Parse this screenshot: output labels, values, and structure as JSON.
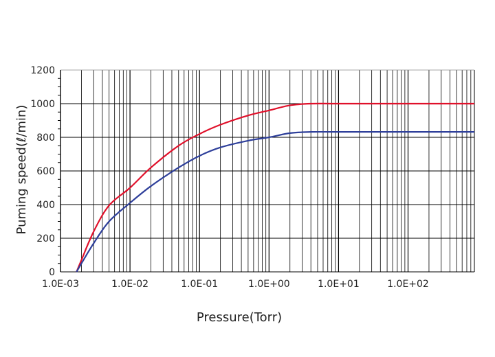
{
  "chart_data": {
    "type": "line",
    "title": "",
    "xlabel": "Pressure(Torr)",
    "ylabel": "Puming speed(ℓ/min)",
    "x_scale": "log",
    "xlim": [
      0.001,
      900
    ],
    "ylim": [
      0,
      1200
    ],
    "x_ticks": [
      {
        "value": 0.001,
        "label": "1.0E-03"
      },
      {
        "value": 0.01,
        "label": "1.0E-02"
      },
      {
        "value": 0.1,
        "label": "1.0E-01"
      },
      {
        "value": 1,
        "label": "1.0E+00"
      },
      {
        "value": 10,
        "label": "1.0E+01"
      },
      {
        "value": 100,
        "label": "1.0E+02"
      }
    ],
    "y_ticks": [
      0,
      200,
      400,
      600,
      800,
      1000,
      1200
    ],
    "grid": true,
    "series": [
      {
        "name": "",
        "color": "#e0102a",
        "points": [
          [
            0.0017,
            0
          ],
          [
            0.002,
            70
          ],
          [
            0.003,
            240
          ],
          [
            0.005,
            395
          ],
          [
            0.01,
            500
          ],
          [
            0.02,
            620
          ],
          [
            0.05,
            750
          ],
          [
            0.1,
            820
          ],
          [
            0.2,
            875
          ],
          [
            0.5,
            930
          ],
          [
            1,
            960
          ],
          [
            2,
            990
          ],
          [
            4,
            1000
          ],
          [
            10,
            1000
          ],
          [
            100,
            1000
          ],
          [
            900,
            1000
          ]
        ]
      },
      {
        "name": "",
        "color": "#2e3f9a",
        "points": [
          [
            0.0017,
            0
          ],
          [
            0.002,
            50
          ],
          [
            0.003,
            170
          ],
          [
            0.005,
            300
          ],
          [
            0.01,
            410
          ],
          [
            0.02,
            510
          ],
          [
            0.05,
            620
          ],
          [
            0.1,
            690
          ],
          [
            0.2,
            740
          ],
          [
            0.5,
            780
          ],
          [
            1,
            800
          ],
          [
            2,
            825
          ],
          [
            4,
            832
          ],
          [
            10,
            832
          ],
          [
            100,
            832
          ],
          [
            900,
            832
          ]
        ]
      }
    ]
  }
}
